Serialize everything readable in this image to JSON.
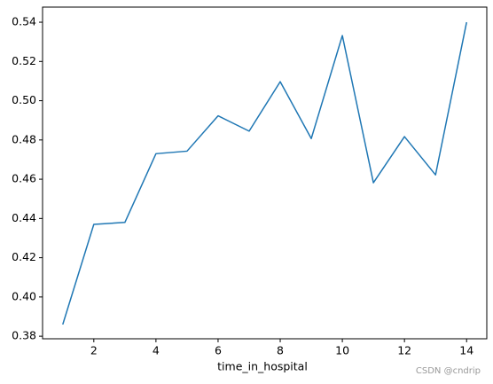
{
  "chart_data": {
    "type": "line",
    "xlabel": "time_in_hospital",
    "x": [
      1,
      2,
      3,
      4,
      5,
      6,
      7,
      8,
      9,
      10,
      11,
      12,
      13,
      14
    ],
    "series": [
      {
        "color": "#1f77b4",
        "values": [
          0.386,
          0.437,
          0.438,
          0.473,
          0.4743,
          0.4923,
          0.4845,
          0.5097,
          0.4807,
          0.5332,
          0.4582,
          0.4817,
          0.4622,
          0.54
        ]
      }
    ],
    "xlim": [
      0.35,
      14.65
    ],
    "xticks": [
      2,
      4,
      6,
      8,
      10,
      12,
      14
    ],
    "ylim": [
      0.3787,
      0.5477
    ],
    "yticks": [
      0.38,
      {
        "value": 0.4,
        "label": "0.40"
      },
      0.42,
      0.44,
      0.46,
      0.48,
      {
        "value": 0.5,
        "label": "0.50"
      },
      0.52,
      0.54
    ],
    "grid": false
  },
  "watermark": "CSDN @cndrip"
}
